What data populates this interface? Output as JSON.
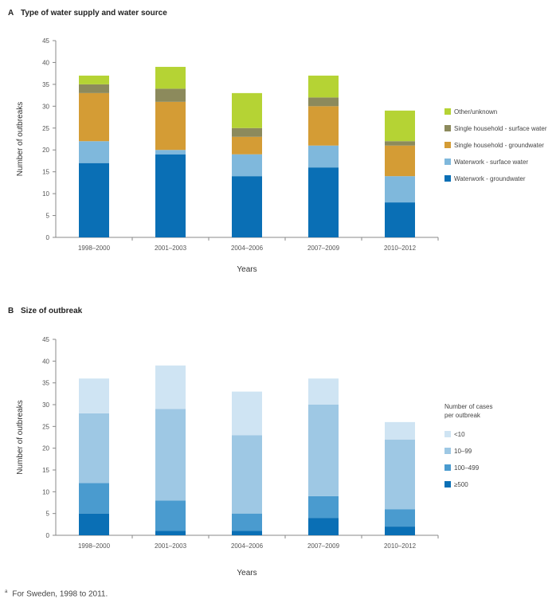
{
  "footnote": {
    "marker": "a",
    "text": "For Sweden, 1998 to 2011."
  },
  "chart_data": [
    {
      "type": "bar",
      "stacked": true,
      "letter": "A",
      "title": "Type of water supply and water source",
      "xlabel": "Years",
      "ylabel": "Number of outbreaks",
      "ylim": [
        0,
        45
      ],
      "yticks": [
        0,
        5,
        10,
        15,
        20,
        25,
        30,
        35,
        40,
        45
      ],
      "grid": false,
      "legend_position": "right",
      "legend_title": "",
      "categories": [
        "1998–2000",
        "2001–2003",
        "2004–2006",
        "2007–2009",
        "2010–2012"
      ],
      "series": [
        {
          "name": "Waterwork - groundwater",
          "color": "#0a6fb5",
          "values": [
            17,
            19,
            14,
            16,
            8
          ]
        },
        {
          "name": "Waterwork - surface water",
          "color": "#7fb8dc",
          "values": [
            5,
            1,
            5,
            5,
            6
          ]
        },
        {
          "name": "Single household - groundwater",
          "color": "#d49c35",
          "values": [
            11,
            11,
            4,
            9,
            7
          ]
        },
        {
          "name": "Single household -  surface water",
          "color": "#8c8a5c",
          "values": [
            2,
            3,
            2,
            2,
            1
          ]
        },
        {
          "name": "Other/unknown",
          "color": "#b5d334",
          "values": [
            2,
            5,
            8,
            5,
            7
          ]
        }
      ]
    },
    {
      "type": "bar",
      "stacked": true,
      "letter": "B",
      "title": "Size of outbreak",
      "xlabel": "Years",
      "ylabel": "Number of outbreaks",
      "ylim": [
        0,
        45
      ],
      "yticks": [
        0,
        5,
        10,
        15,
        20,
        25,
        30,
        35,
        40,
        45
      ],
      "grid": false,
      "legend_position": "right",
      "legend_title": [
        "Number of cases",
        "per outbreak"
      ],
      "categories": [
        "1998–2000",
        "2001–2003",
        "2004–2006",
        "2007–2009",
        "2010–2012"
      ],
      "series": [
        {
          "name": "≥500",
          "color": "#0a6fb5",
          "values": [
            5,
            1,
            1,
            4,
            2
          ]
        },
        {
          "name": "100–499",
          "color": "#4a9bcf",
          "values": [
            7,
            7,
            4,
            5,
            4
          ]
        },
        {
          "name": "10–99",
          "color": "#9ec8e4",
          "values": [
            16,
            21,
            18,
            21,
            16
          ]
        },
        {
          "name": "<10",
          "color": "#cfe4f3",
          "values": [
            8,
            10,
            10,
            6,
            4
          ]
        }
      ]
    }
  ]
}
